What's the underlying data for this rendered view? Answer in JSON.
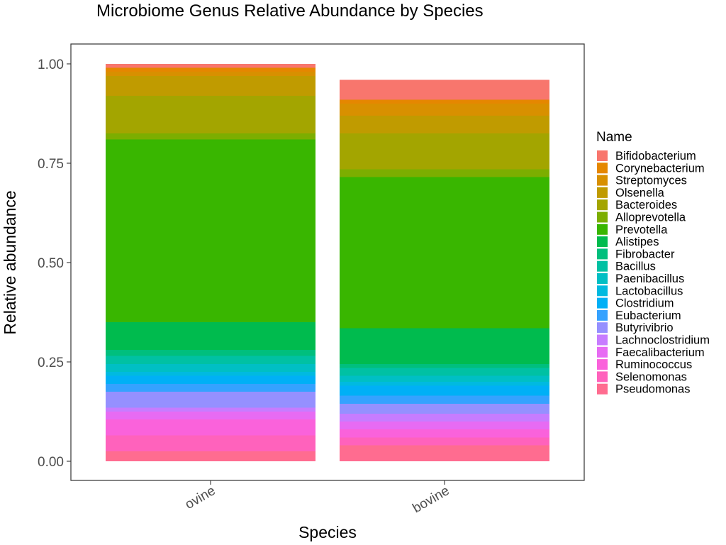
{
  "chart_data": {
    "type": "bar",
    "stacked": true,
    "title": "Microbiome Genus Relative Abundance by Species",
    "xlabel": "Species",
    "ylabel": "Relative abundance",
    "ylim": [
      0,
      1
    ],
    "yticks": [
      "0.00",
      "0.25",
      "0.50",
      "0.75",
      "1.00"
    ],
    "categories": [
      "ovine",
      "bovine"
    ],
    "grid": false,
    "legend_title": "Name",
    "legend_position": "right",
    "series": [
      {
        "name": "Bifidobacterium",
        "color": "#F8766D",
        "values": [
          0.01,
          0.05
        ]
      },
      {
        "name": "Corynebacterium",
        "color": "#E58700",
        "values": [
          0.01,
          0.01
        ]
      },
      {
        "name": "Streptomyces",
        "color": "#D89000",
        "values": [
          0.01,
          0.03
        ]
      },
      {
        "name": "Olsenella",
        "color": "#C09B00",
        "values": [
          0.05,
          0.045
        ]
      },
      {
        "name": "Bacteroides",
        "color": "#A3A500",
        "values": [
          0.095,
          0.09
        ]
      },
      {
        "name": "Alloprevotella",
        "color": "#7CAE00",
        "values": [
          0.015,
          0.02
        ]
      },
      {
        "name": "Prevotella",
        "color": "#39B600",
        "values": [
          0.46,
          0.38
        ]
      },
      {
        "name": "Alistipes",
        "color": "#00BB4E",
        "values": [
          0.07,
          0.09
        ]
      },
      {
        "name": "Fibrobacter",
        "color": "#00BF7D",
        "values": [
          0.015,
          0.01
        ]
      },
      {
        "name": "Bacillus",
        "color": "#00C1A3",
        "values": [
          0.02,
          0.02
        ]
      },
      {
        "name": "Paenibacillus",
        "color": "#00BFC4",
        "values": [
          0.02,
          0.015
        ]
      },
      {
        "name": "Lactobacillus",
        "color": "#00BAE0",
        "values": [
          0.01,
          0.01
        ]
      },
      {
        "name": "Clostridium",
        "color": "#00B0F6",
        "values": [
          0.02,
          0.025
        ]
      },
      {
        "name": "Eubacterium",
        "color": "#35A2FF",
        "values": [
          0.02,
          0.02
        ]
      },
      {
        "name": "Butyrivibrio",
        "color": "#9590FF",
        "values": [
          0.04,
          0.025
        ]
      },
      {
        "name": "Lachnoclostridium",
        "color": "#C77CFF",
        "values": [
          0.01,
          0.02
        ]
      },
      {
        "name": "Faecalibacterium",
        "color": "#E76BF3",
        "values": [
          0.02,
          0.02
        ]
      },
      {
        "name": "Ruminococcus",
        "color": "#FA62DB",
        "values": [
          0.04,
          0.02
        ]
      },
      {
        "name": "Selenomonas",
        "color": "#FF62BC",
        "values": [
          0.04,
          0.02
        ]
      },
      {
        "name": "Pseudomonas",
        "color": "#FF6C90",
        "values": [
          0.025,
          0.04
        ]
      }
    ]
  }
}
